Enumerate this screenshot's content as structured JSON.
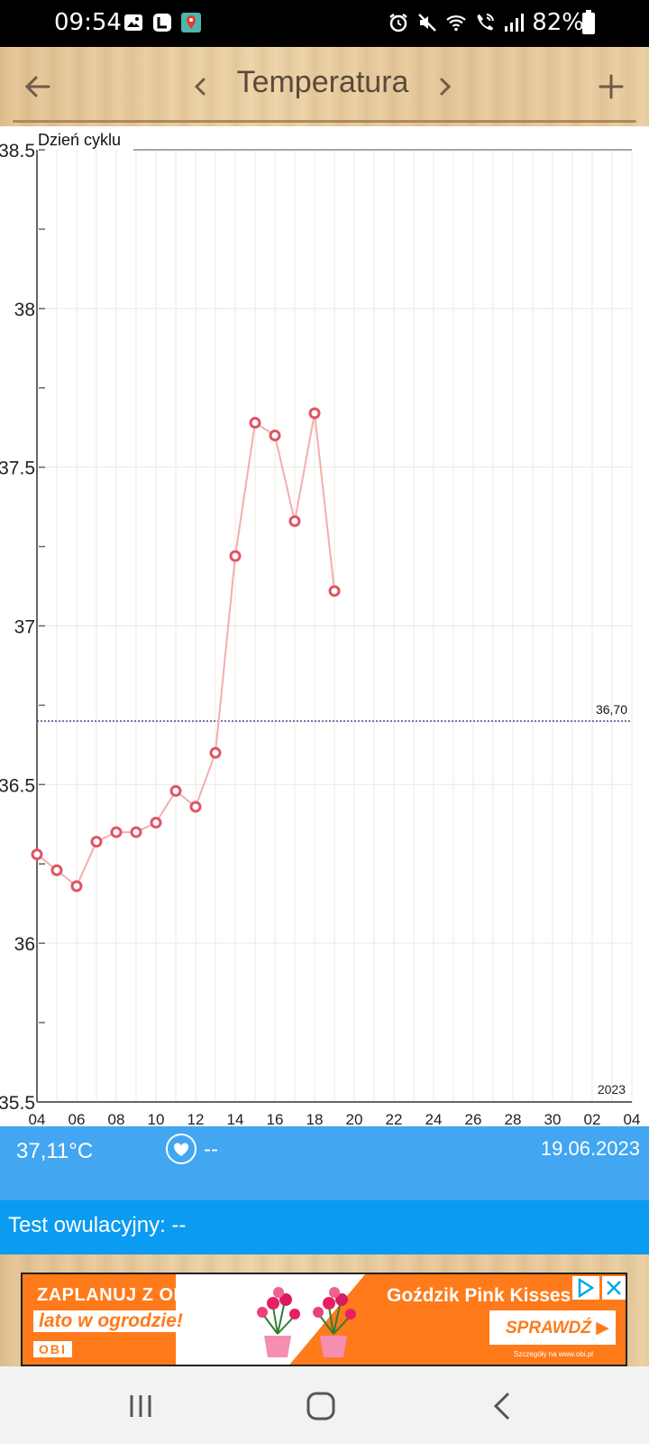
{
  "status_bar": {
    "time": "09:54",
    "battery": "82%",
    "left_icons": [
      "gallery-icon",
      "app-l-icon",
      "maps-icon"
    ],
    "right_icons": [
      "alarm-icon",
      "mute-icon",
      "wifi-icon",
      "wifi-call-icon",
      "signal-icon",
      "battery-icon"
    ]
  },
  "header": {
    "title": "Temperatura",
    "back_icon": "arrow-left-icon",
    "prev_icon": "chevron-left-icon",
    "next_icon": "chevron-right-icon",
    "add_icon": "plus-icon"
  },
  "chart_data": {
    "type": "line",
    "xlabel": "Dzień cyklu",
    "x_ticks": [
      "04",
      "06",
      "08",
      "10",
      "12",
      "14",
      "16",
      "18",
      "20",
      "22",
      "24",
      "26",
      "28",
      "30",
      "02",
      "04"
    ],
    "y_ticks": [
      "35.5",
      "36",
      "36.5",
      "37",
      "37.5",
      "38",
      "38.5"
    ],
    "ylim": [
      35.5,
      38.5
    ],
    "year_label": "2023",
    "threshold": {
      "value": 36.7,
      "label": "36,70"
    },
    "series": [
      {
        "x": [
          0,
          1,
          2,
          3,
          4,
          5,
          6,
          7,
          8,
          9,
          10,
          11,
          12,
          13,
          14,
          15
        ],
        "values": [
          36.28,
          36.23,
          36.18,
          36.32,
          36.35,
          36.35,
          36.38,
          36.48,
          36.43,
          36.6,
          37.22,
          37.64,
          37.6,
          37.33,
          37.67,
          37.11
        ]
      }
    ],
    "grid": true,
    "line_color": "#f3aeae",
    "marker_color": "#e05563"
  },
  "info": {
    "temperature": "37,11°C",
    "heart_icon": "heart-icon",
    "heart_value": "--",
    "date": "19.06.2023"
  },
  "test": {
    "label": "Test owulacyjny: --"
  },
  "ad": {
    "line1": "ZAPLANUJ Z OBI",
    "line2": "lato w ogrodzie!",
    "brand": "OBI",
    "product": "Goździk Pink Kisses",
    "cta": "SPRAWDŹ",
    "fine_print": "Szczegóły na www.obi.pl",
    "accent": "#ff7a1a"
  },
  "nav": {
    "recent_icon": "recent-apps-icon",
    "home_icon": "home-icon",
    "back_icon": "back-icon"
  }
}
